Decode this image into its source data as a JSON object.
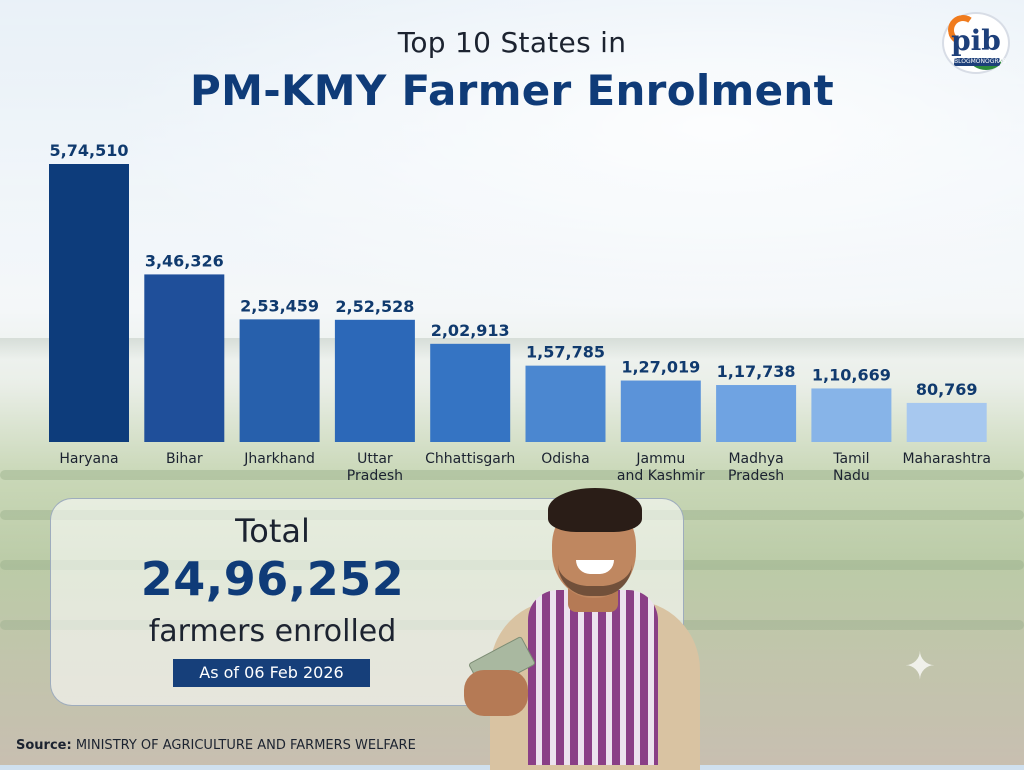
{
  "header": {
    "title_top": "Top 10 States in",
    "title_main": "PM-KMY Farmer Enrolment"
  },
  "logo": {
    "text": "pib",
    "subtext": "BLOGMONOGRAS"
  },
  "colors": {
    "title": "#0f3b78",
    "bar_darkest": "#0d3c7b",
    "bar_lightest": "#a7c8ef",
    "badge": "#163f7a"
  },
  "chart_data": {
    "type": "bar",
    "title": "",
    "xlabel": "",
    "ylabel": "",
    "grid": false,
    "legend": "none",
    "categories": [
      "Haryana",
      "Bihar",
      "Jharkhand",
      "Uttar Pradesh",
      "Chhattisgarh",
      "Odisha",
      "Jammu and Kashmir",
      "Madhya Pradesh",
      "Tamil Nadu",
      "Maharashtra"
    ],
    "category_lines": [
      [
        "Haryana"
      ],
      [
        "Bihar"
      ],
      [
        "Jharkhand"
      ],
      [
        "Uttar",
        "Pradesh"
      ],
      [
        "Chhattisgarh"
      ],
      [
        "Odisha"
      ],
      [
        "Jammu",
        "and Kashmir"
      ],
      [
        "Madhya",
        "Pradesh"
      ],
      [
        "Tamil",
        "Nadu"
      ],
      [
        "Maharashtra"
      ]
    ],
    "values": [
      574510,
      346326,
      253459,
      252528,
      202913,
      157785,
      127019,
      117738,
      110669,
      80769
    ],
    "value_labels": [
      "5,74,510",
      "3,46,326",
      "2,53,459",
      "2,52,528",
      "2,02,913",
      "1,57,785",
      "1,27,019",
      "1,17,738",
      "1,10,669",
      "80,769"
    ],
    "bar_colors": [
      "#0d3c7b",
      "#1f4f9a",
      "#2760ac",
      "#2c68b8",
      "#3574c3",
      "#4b87d0",
      "#5b93d9",
      "#6fa3e2",
      "#87b4e8",
      "#a7c8ef"
    ],
    "ylim": [
      0,
      574510
    ]
  },
  "total": {
    "label": "Total",
    "value": "24,96,252",
    "caption": "farmers enrolled",
    "date": "As of 06 Feb 2026"
  },
  "source": {
    "label": "Source:",
    "text": "MINISTRY OF AGRICULTURE AND FARMERS WELFARE"
  },
  "icons": {
    "sparkle": "sparkle-icon",
    "logo": "pib-logo-icon"
  }
}
